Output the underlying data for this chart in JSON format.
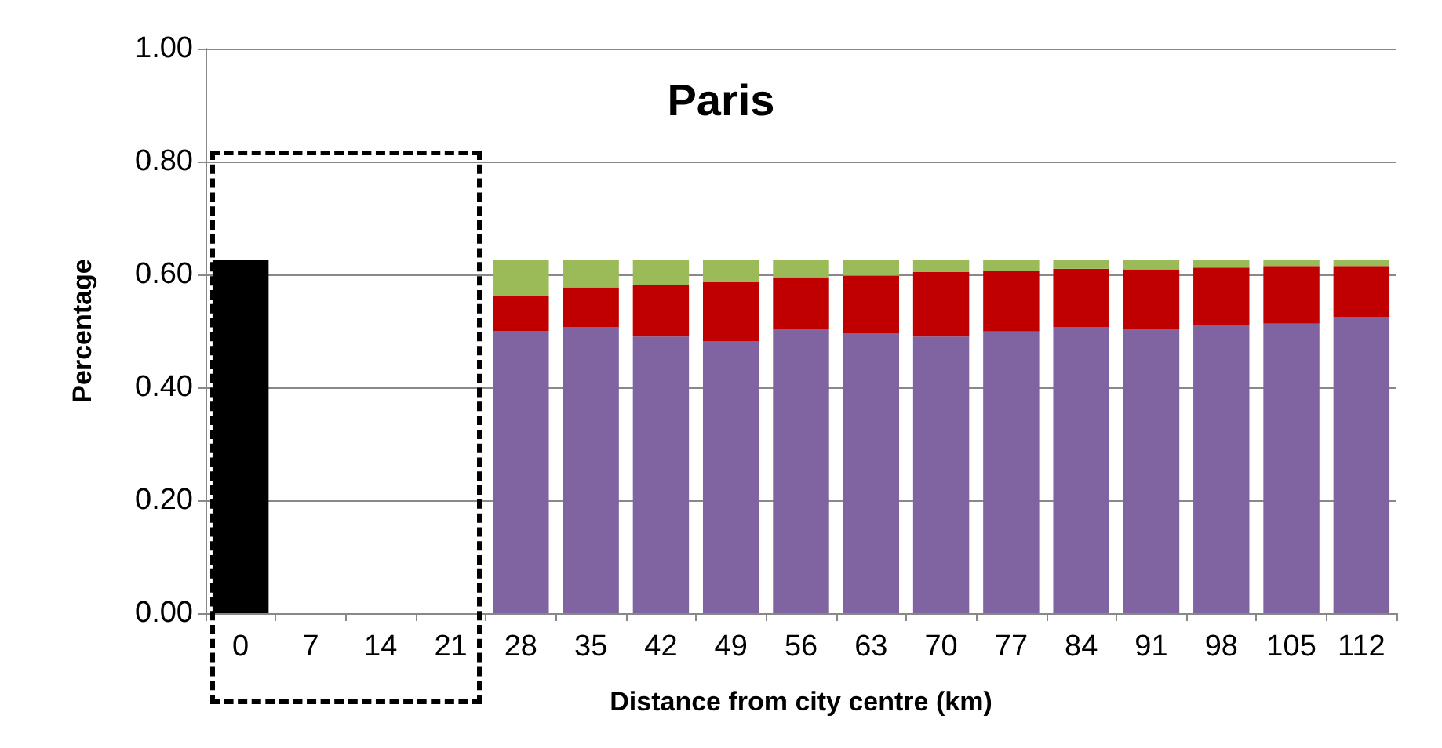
{
  "chart_data": {
    "type": "bar",
    "title": "Paris",
    "xlabel": "Distance from city centre (km)",
    "ylabel": "Percentage",
    "categories": [
      "0",
      "7",
      "14",
      "21",
      "28",
      "35",
      "42",
      "49",
      "56",
      "63",
      "70",
      "77",
      "84",
      "91",
      "98",
      "105",
      "112"
    ],
    "stacked": true,
    "series": [
      {
        "color": "#000000",
        "values": [
          0.625,
          null,
          null,
          null,
          null,
          null,
          null,
          null,
          null,
          null,
          null,
          null,
          null,
          null,
          null,
          null,
          null
        ]
      },
      {
        "color": "#8064a2",
        "values": [
          null,
          null,
          null,
          null,
          0.5,
          0.507,
          0.49,
          0.482,
          0.504,
          0.496,
          0.49,
          0.499,
          0.507,
          0.504,
          0.51,
          0.513,
          0.525
        ]
      },
      {
        "color": "#c00000",
        "values": [
          null,
          null,
          null,
          null,
          0.062,
          0.07,
          0.091,
          0.104,
          0.091,
          0.102,
          0.114,
          0.107,
          0.103,
          0.105,
          0.102,
          0.102,
          0.09
        ]
      },
      {
        "color": "#9bbb59",
        "values": [
          null,
          null,
          null,
          null,
          0.063,
          0.048,
          0.044,
          0.039,
          0.03,
          0.027,
          0.021,
          0.019,
          0.015,
          0.016,
          0.013,
          0.01,
          0.01
        ]
      }
    ],
    "ylim": [
      0,
      1
    ],
    "yticks": [
      {
        "value": 0,
        "label": "0.00"
      },
      {
        "value": 0.2,
        "label": "0.20"
      },
      {
        "value": 0.4,
        "label": "0.40"
      },
      {
        "value": 0.6,
        "label": "0.60"
      },
      {
        "value": 0.8,
        "label": "0.80"
      },
      {
        "value": 1,
        "label": "1.00"
      }
    ],
    "grid": "y"
  }
}
